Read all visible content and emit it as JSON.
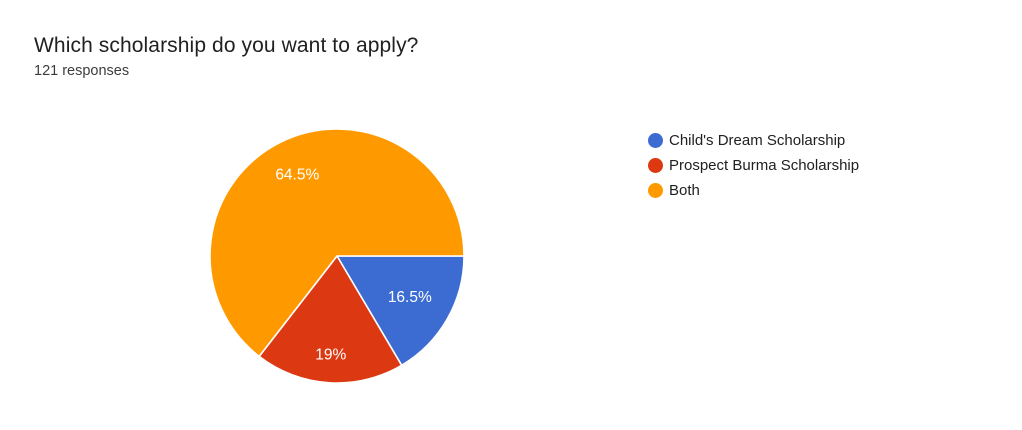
{
  "header": {
    "title": "Which scholarship do you want to apply?",
    "responses": "121 responses"
  },
  "chart_data": {
    "type": "pie",
    "title": "Which scholarship do you want to apply?",
    "subtitle": "121 responses",
    "total_responses": 121,
    "categories": [
      "Child's Dream Scholarship",
      "Prospect Burma Scholarship",
      "Both"
    ],
    "values": [
      16.5,
      19,
      64.5
    ],
    "slice_labels": [
      "16.5%",
      "19%",
      "64.5%"
    ],
    "colors": [
      "#3c6cd2",
      "#dc3912",
      "#ff9900"
    ],
    "slice_label_color": "#ffffff",
    "slice_border_color": "#ffffff",
    "start_angle_deg": 0,
    "direction": "clockwise",
    "legend_position": "right",
    "background_color": "#ffffff"
  }
}
